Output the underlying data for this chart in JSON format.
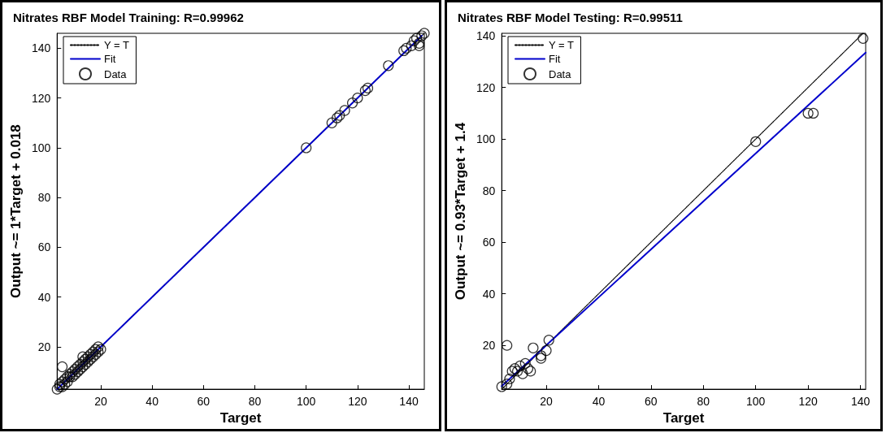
{
  "chart_data": [
    {
      "type": "scatter",
      "title": "Nitrates RBF Model Training: R=0.99962",
      "xlabel": "Target",
      "ylabel": "Output ~= 1*Target + 0.018",
      "xlim": [
        3,
        146
      ],
      "ylim": [
        3,
        146
      ],
      "xticks": [
        20,
        40,
        60,
        80,
        100,
        120,
        140
      ],
      "yticks": [
        20,
        40,
        60,
        80,
        100,
        120,
        140
      ],
      "grid": false,
      "legend": "top left",
      "series": [
        {
          "name": "Y = T",
          "type": "line",
          "line_style": "dotted",
          "marker": "none",
          "color": "#000000",
          "x": [
            3,
            146
          ],
          "values": [
            3,
            146
          ]
        },
        {
          "name": "Fit",
          "type": "line",
          "line_style": "solid",
          "marker": "none",
          "color": "#0000cc",
          "x": [
            3,
            145
          ],
          "values": [
            3,
            145
          ]
        },
        {
          "name": "Data",
          "marker": "circle",
          "color": "#000000",
          "x": [
            3,
            4,
            4,
            5,
            5,
            6,
            6,
            7,
            7,
            8,
            8,
            9,
            9,
            10,
            10,
            11,
            11,
            12,
            12,
            13,
            13,
            14,
            14,
            15,
            15,
            16,
            16,
            17,
            17,
            18,
            18,
            19,
            19,
            20,
            5,
            13,
            100,
            110,
            112,
            113,
            115,
            118,
            120,
            123,
            124,
            132,
            138,
            139,
            141,
            142,
            143,
            144,
            145,
            146,
            144
          ],
          "values": [
            3,
            4,
            5,
            4,
            6,
            5,
            7,
            6,
            8,
            8,
            9,
            8,
            10,
            9,
            11,
            10,
            12,
            11,
            13,
            12,
            14,
            13,
            15,
            14,
            16,
            15,
            17,
            16,
            18,
            17,
            19,
            18,
            20,
            19,
            12,
            16,
            100,
            110,
            112,
            113,
            115,
            118,
            120,
            123,
            124,
            133,
            139,
            140,
            141,
            143,
            144,
            142,
            145,
            146,
            141
          ]
        }
      ]
    },
    {
      "type": "scatter",
      "title": "Nitrates RBF Model Testing: R=0.99511",
      "xlabel": "Target",
      "ylabel": "Output ~= 0.93*Target + 1.4",
      "xlim": [
        3,
        142
      ],
      "ylim": [
        3,
        141
      ],
      "xticks": [
        20,
        40,
        60,
        80,
        100,
        120,
        140
      ],
      "yticks": [
        20,
        40,
        60,
        80,
        100,
        120,
        140
      ],
      "grid": false,
      "legend": "top left",
      "series": [
        {
          "name": "Y = T",
          "type": "line",
          "line_style": "dotted",
          "marker": "none",
          "color": "#000000",
          "x": [
            3,
            141
          ],
          "values": [
            3,
            141
          ]
        },
        {
          "name": "Fit",
          "type": "line",
          "line_style": "solid",
          "marker": "none",
          "color": "#0000cc",
          "x": [
            3,
            142
          ],
          "values": [
            4.2,
            133.5
          ]
        },
        {
          "name": "Data",
          "marker": "circle",
          "color": "#000000",
          "x": [
            3,
            5,
            6,
            5,
            7,
            8,
            9,
            10,
            11,
            12,
            13,
            14,
            15,
            18,
            18,
            20,
            21,
            100,
            120,
            122,
            141
          ],
          "values": [
            4,
            5,
            7,
            20,
            10,
            11,
            10,
            12,
            9,
            13,
            11,
            10,
            19,
            15,
            16,
            18,
            22,
            99,
            110,
            110,
            139
          ]
        }
      ]
    }
  ]
}
